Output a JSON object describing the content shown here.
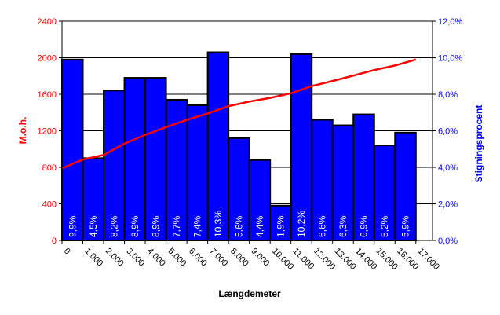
{
  "chart_data": {
    "type": "bar",
    "xlabel": "Længdemeter",
    "ylabel_left": "M.o.h.",
    "ylabel_right": "Stigningsprocent",
    "x_tick_labels": [
      "0",
      "1.000",
      "2.000",
      "3.000",
      "4.000",
      "5.000",
      "6.000",
      "7.000",
      "8.000",
      "9.000",
      "10.000",
      "11.000",
      "12.000",
      "13.000",
      "14.000",
      "15.000",
      "16.000",
      "17.000"
    ],
    "y_left": {
      "range": [
        0,
        2400
      ],
      "ticks": [
        "0",
        "400",
        "800",
        "1200",
        "1600",
        "2000",
        "2400"
      ]
    },
    "y_right": {
      "range": [
        0,
        12
      ],
      "ticks": [
        "0,0%",
        "2,0%",
        "4,0%",
        "6,0%",
        "8,0%",
        "10,0%",
        "12,0%"
      ]
    },
    "grid": "horizontal",
    "bars": {
      "axis": "right",
      "color": "#0000ff",
      "x_start": [
        0,
        1000,
        2000,
        3000,
        4000,
        5000,
        6000,
        7000,
        8000,
        9000,
        10000,
        11000,
        12000,
        13000,
        14000,
        15000,
        16000
      ],
      "values": [
        9.9,
        4.5,
        8.2,
        8.9,
        8.9,
        7.7,
        7.4,
        10.3,
        5.6,
        4.4,
        1.9,
        10.2,
        6.6,
        6.3,
        6.9,
        5.2,
        5.9
      ],
      "labels": [
        "9,9%",
        "4,5%",
        "8,2%",
        "8,9%",
        "8,9%",
        "7,7%",
        "7,4%",
        "10,3%",
        "5,6%",
        "4,4%",
        "1,9%",
        "10,2%",
        "6,6%",
        "6,3%",
        "6,9%",
        "5,2%",
        "5,9%"
      ]
    },
    "line": {
      "axis": "left",
      "color": "#ff0000",
      "x": [
        0,
        1000,
        2000,
        3000,
        4000,
        5000,
        6000,
        7000,
        8000,
        9000,
        10000,
        11000,
        12000,
        13000,
        14000,
        15000,
        16000,
        17000
      ],
      "y": [
        790,
        885,
        935,
        1060,
        1155,
        1240,
        1320,
        1390,
        1470,
        1520,
        1560,
        1610,
        1690,
        1745,
        1805,
        1865,
        1915,
        1980
      ]
    }
  }
}
